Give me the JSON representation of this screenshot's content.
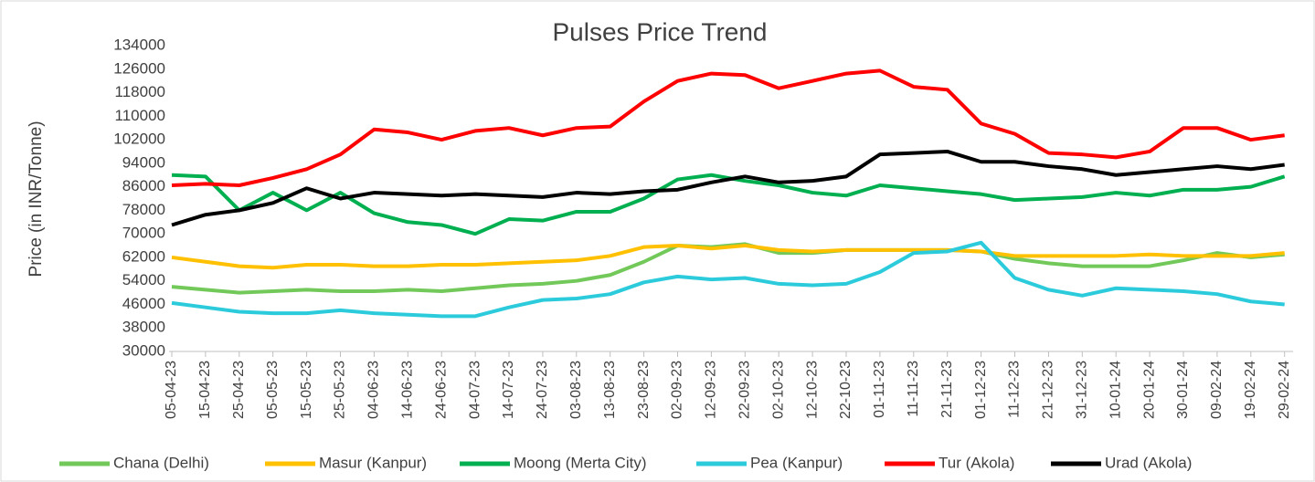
{
  "chart_data": {
    "type": "line",
    "title": "Pulses Price Trend",
    "y_label": "Price (in INR/Tonne)",
    "categories": [
      "05-04-23",
      "15-04-23",
      "25-04-23",
      "05-05-23",
      "15-05-23",
      "25-05-23",
      "04-06-23",
      "14-06-23",
      "24-06-23",
      "04-07-23",
      "14-07-23",
      "24-07-23",
      "03-08-23",
      "13-08-23",
      "23-08-23",
      "02-09-23",
      "12-09-23",
      "22-09-23",
      "02-10-23",
      "12-10-23",
      "22-10-23",
      "01-11-23",
      "11-11-23",
      "21-11-23",
      "01-12-23",
      "11-12-23",
      "21-12-23",
      "31-12-23",
      "10-01-24",
      "20-01-24",
      "30-01-24",
      "09-02-24",
      "19-02-24",
      "29-02-24"
    ],
    "series": [
      {
        "name": "Chana (Delhi)",
        "color": "#72c95a",
        "values": [
          52000,
          51000,
          50000,
          50500,
          51000,
          50500,
          50500,
          51000,
          50500,
          51500,
          52500,
          53000,
          54000,
          56000,
          60500,
          66000,
          65500,
          66500,
          63500,
          63500,
          64500,
          64500,
          64500,
          64500,
          64000,
          61500,
          60000,
          59000,
          59000,
          59000,
          61000,
          63500,
          62000,
          63000
        ]
      },
      {
        "name": "Masur (Kanpur)",
        "color": "#ffc000",
        "values": [
          62000,
          60500,
          59000,
          58500,
          59500,
          59500,
          59000,
          59000,
          59500,
          59500,
          60000,
          60500,
          61000,
          62500,
          65500,
          66000,
          65000,
          66000,
          64500,
          64000,
          64500,
          64500,
          64500,
          64500,
          64000,
          62500,
          62500,
          62500,
          62500,
          63000,
          62500,
          62500,
          62500,
          63500
        ]
      },
      {
        "name": "Moong (Merta City)",
        "color": "#00b050",
        "values": [
          90000,
          89500,
          78000,
          84000,
          78000,
          84000,
          77000,
          74000,
          73000,
          70000,
          75000,
          74500,
          77500,
          77500,
          82000,
          88500,
          90000,
          88000,
          86500,
          84000,
          83000,
          86500,
          85500,
          84500,
          83500,
          81500,
          82000,
          82500,
          84000,
          83000,
          85000,
          85000,
          86000,
          89500
        ]
      },
      {
        "name": "Pea (Kanpur)",
        "color": "#2ccbdc",
        "values": [
          46500,
          45000,
          43500,
          43000,
          43000,
          44000,
          43000,
          42500,
          42000,
          42000,
          45000,
          47500,
          48000,
          49500,
          53500,
          55500,
          54500,
          55000,
          53000,
          52500,
          53000,
          57000,
          63500,
          64000,
          67000,
          55000,
          51000,
          49000,
          51500,
          51000,
          50500,
          49500,
          47000,
          46000
        ]
      },
      {
        "name": "Tur (Akola)",
        "color": "#ff0000",
        "values": [
          86500,
          87000,
          86500,
          89000,
          92000,
          97000,
          105500,
          104500,
          102000,
          105000,
          106000,
          103500,
          106000,
          106500,
          115000,
          122000,
          124500,
          124000,
          119500,
          122000,
          124500,
          125500,
          120000,
          119000,
          107500,
          104000,
          97500,
          97000,
          96000,
          98000,
          106000,
          106000,
          102000,
          103500
        ]
      },
      {
        "name": "Urad (Akola)",
        "color": "#000000",
        "values": [
          73000,
          76500,
          78000,
          80500,
          85500,
          82000,
          84000,
          83500,
          83000,
          83500,
          83000,
          82500,
          84000,
          83500,
          84500,
          85000,
          87500,
          89500,
          87500,
          88000,
          89500,
          97000,
          97500,
          98000,
          94500,
          94500,
          93000,
          92000,
          90000,
          91000,
          92000,
          93000,
          92000,
          93500
        ]
      }
    ],
    "ylim": [
      30000,
      134000
    ],
    "yticks": [
      30000,
      38000,
      46000,
      54000,
      62000,
      70000,
      78000,
      86000,
      94000,
      102000,
      110000,
      118000,
      126000,
      134000
    ],
    "legend": "bottom"
  }
}
